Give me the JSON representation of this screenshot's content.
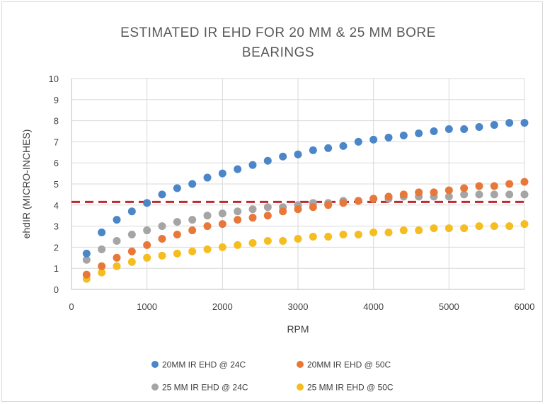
{
  "chart_data": {
    "type": "scatter",
    "title_lines": [
      "ESTIMATED IR EHD FOR 20 MM & 25 MM BORE",
      "BEARINGS"
    ],
    "xlabel": "RPM",
    "ylabel": "ehdIR (MICRO-INCHES)",
    "xlim": [
      0,
      6000
    ],
    "ylim": [
      0,
      10
    ],
    "xticks": [
      0,
      1000,
      2000,
      3000,
      4000,
      5000,
      6000
    ],
    "yticks": [
      0,
      1,
      2,
      3,
      4,
      5,
      6,
      7,
      8,
      9,
      10
    ],
    "grid": "vertical and horizontal",
    "legend_placement": "bottom",
    "x": [
      200,
      400,
      600,
      800,
      1000,
      1200,
      1400,
      1600,
      1800,
      2000,
      2200,
      2400,
      2600,
      2800,
      3000,
      3200,
      3400,
      3600,
      3800,
      4000,
      4200,
      4400,
      4600,
      4800,
      5000,
      5200,
      5400,
      5600,
      5800,
      6000
    ],
    "series": [
      {
        "name": "20MM  IR EHD   @ 24C",
        "color": "#4a86c8",
        "values": [
          1.7,
          2.7,
          3.3,
          3.7,
          4.1,
          4.5,
          4.8,
          5.0,
          5.3,
          5.5,
          5.7,
          5.9,
          6.1,
          6.3,
          6.4,
          6.6,
          6.7,
          6.8,
          7.0,
          7.1,
          7.2,
          7.3,
          7.4,
          7.5,
          7.6,
          7.6,
          7.7,
          7.8,
          7.9,
          7.9
        ]
      },
      {
        "name": "20MM  IR EHD   @ 50C",
        "color": "#e8773a",
        "values": [
          0.7,
          1.1,
          1.5,
          1.8,
          2.1,
          2.4,
          2.6,
          2.8,
          3.0,
          3.1,
          3.3,
          3.4,
          3.5,
          3.7,
          3.8,
          3.9,
          4.0,
          4.1,
          4.2,
          4.3,
          4.4,
          4.5,
          4.6,
          4.6,
          4.7,
          4.8,
          4.9,
          4.9,
          5.0,
          5.1
        ]
      },
      {
        "name": "25 MM IR EHD @ 24C",
        "color": "#a5a5a5",
        "values": [
          1.4,
          1.9,
          2.3,
          2.6,
          2.8,
          3.0,
          3.2,
          3.3,
          3.5,
          3.6,
          3.7,
          3.8,
          3.9,
          3.9,
          4.0,
          4.1,
          4.1,
          4.2,
          4.2,
          4.3,
          4.3,
          4.4,
          4.4,
          4.4,
          4.4,
          4.5,
          4.5,
          4.5,
          4.5,
          4.5
        ]
      },
      {
        "name": "25 MM IR EHD @ 50C",
        "color": "#f5bd1f",
        "values": [
          0.5,
          0.8,
          1.1,
          1.3,
          1.5,
          1.6,
          1.7,
          1.8,
          1.9,
          2.0,
          2.1,
          2.2,
          2.3,
          2.3,
          2.4,
          2.5,
          2.5,
          2.6,
          2.6,
          2.7,
          2.7,
          2.8,
          2.8,
          2.9,
          2.9,
          2.9,
          3.0,
          3.0,
          3.0,
          3.1
        ]
      }
    ],
    "reference_line": {
      "y": 4.15,
      "style": "dashed",
      "color": "#c0282d"
    }
  }
}
